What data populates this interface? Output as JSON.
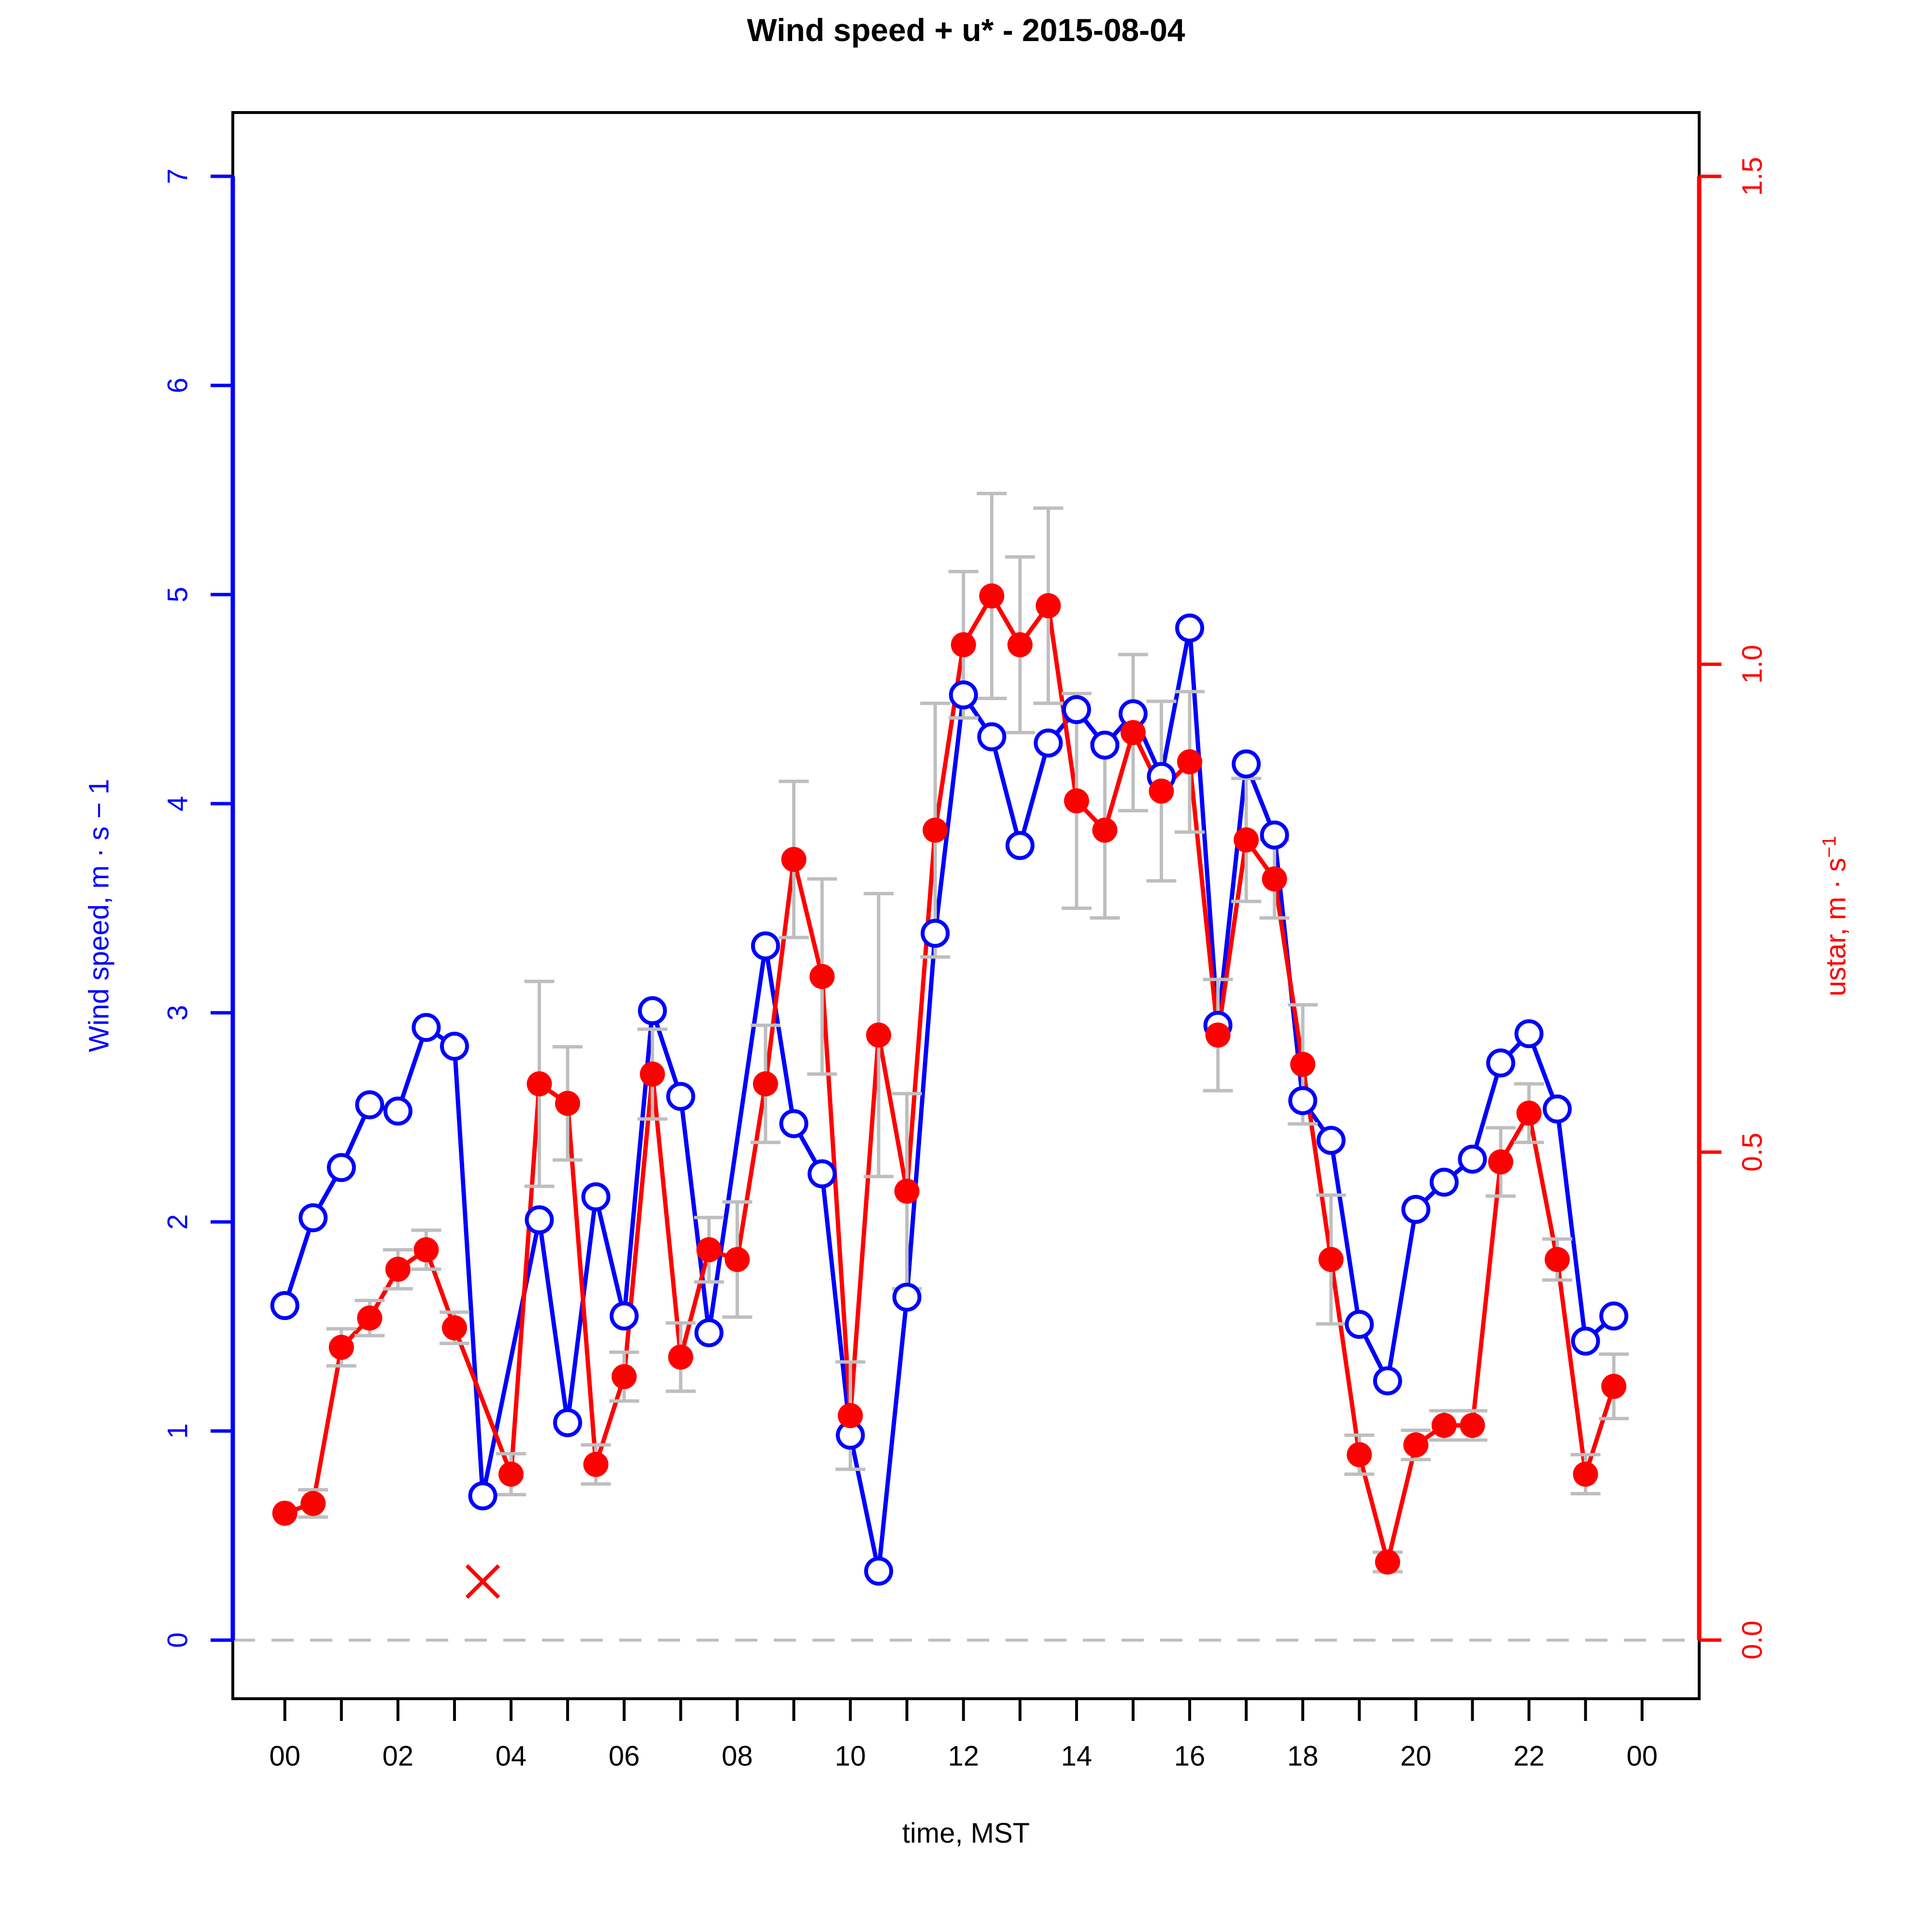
{
  "chart_data": {
    "type": "line",
    "title": "Wind speed + u* -  2015-08-04",
    "xlabel": "time, MST",
    "ylabel_left": "Wind speed, m · s − 1",
    "ylabel_right_base": "ustar, m · s",
    "ylabel_right_sup": "−1",
    "x_unit": "hour of day (half-hourly samples)",
    "x": [
      0,
      0.5,
      1,
      1.5,
      2,
      2.5,
      3,
      3.5,
      4,
      4.5,
      5,
      5.5,
      6,
      6.5,
      7,
      7.5,
      8,
      8.5,
      9,
      9.5,
      10,
      10.5,
      11,
      11.5,
      12,
      12.5,
      13,
      13.5,
      14,
      14.5,
      15,
      15.5,
      16,
      16.5,
      17,
      17.5,
      18,
      18.5,
      19,
      19.5,
      20,
      20.5,
      21,
      21.5,
      22,
      22.5,
      23,
      23.5
    ],
    "series": [
      {
        "name": "Wind speed",
        "axis": "left",
        "color": "#0000ff",
        "marker": "open-circle",
        "values": [
          1.6,
          2.02,
          2.26,
          2.56,
          2.53,
          2.93,
          2.84,
          0.69,
          null,
          2.01,
          1.04,
          2.12,
          1.55,
          3.01,
          2.6,
          1.47,
          null,
          3.32,
          2.47,
          2.23,
          0.98,
          0.33,
          1.64,
          3.38,
          4.52,
          4.32,
          3.8,
          4.29,
          4.45,
          4.28,
          4.43,
          4.13,
          4.84,
          2.94,
          4.19,
          3.85,
          2.58,
          2.39,
          1.51,
          1.24,
          2.06,
          2.19,
          2.3,
          2.76,
          2.9,
          2.54,
          1.43,
          1.55
        ]
      },
      {
        "name": "ustar",
        "axis": "right",
        "color": "#ff0000",
        "marker": "filled-circle",
        "values": [
          0.13,
          0.14,
          0.3,
          0.33,
          0.38,
          0.4,
          0.32,
          null,
          0.17,
          0.57,
          0.55,
          0.18,
          0.27,
          0.58,
          0.29,
          0.4,
          0.39,
          0.57,
          0.8,
          0.68,
          0.23,
          0.62,
          0.46,
          0.83,
          1.02,
          1.07,
          1.02,
          1.06,
          0.86,
          0.83,
          0.93,
          0.87,
          0.9,
          0.62,
          0.82,
          0.78,
          0.59,
          0.39,
          0.19,
          0.08,
          0.2,
          0.22,
          0.22,
          0.49,
          0.54,
          0.39,
          0.17,
          0.26
        ],
        "err": [
          null,
          0.014,
          0.019,
          0.018,
          0.02,
          0.02,
          0.016,
          null,
          0.021,
          0.105,
          0.058,
          0.02,
          0.025,
          0.046,
          0.035,
          0.033,
          0.059,
          0.06,
          0.08,
          0.1,
          0.055,
          0.145,
          0.1,
          0.13,
          0.075,
          0.105,
          0.09,
          0.1,
          0.11,
          0.09,
          0.08,
          0.092,
          0.072,
          0.057,
          0.063,
          0.04,
          0.061,
          0.066,
          0.02,
          0.01,
          0.015,
          0.015,
          0.015,
          0.035,
          0.03,
          0.021,
          0.02,
          0.033
        ]
      }
    ],
    "flagged_point": {
      "x": 3.5,
      "value": 0.06,
      "marker": "x",
      "color": "#ff0000",
      "series": "ustar"
    },
    "axes": {
      "x": {
        "range": [
          -0.92,
          25.01
        ],
        "tick_step_hours": 1,
        "label_positions": [
          0,
          2,
          4,
          6,
          8,
          10,
          12,
          14,
          16,
          18,
          20,
          22,
          24
        ],
        "labels": [
          "00",
          "02",
          "04",
          "06",
          "08",
          "10",
          "12",
          "14",
          "16",
          "18",
          "20",
          "22",
          "00"
        ],
        "color": "#000000"
      },
      "left": {
        "range": [
          -0.28,
          7.305
        ],
        "ticks": [
          0,
          1,
          2,
          3,
          4,
          5,
          6,
          7
        ],
        "labels": [
          "0",
          "1",
          "2",
          "3",
          "4",
          "5",
          "6",
          "7"
        ],
        "color": "#0000ff"
      },
      "right": {
        "range": [
          -0.0601,
          1.5654
        ],
        "ticks": [
          0,
          0.5,
          1.0,
          1.5
        ],
        "labels": [
          "0.0",
          "0.5",
          "1.0",
          "1.5"
        ],
        "color": "#ff0000"
      }
    },
    "zero_line": {
      "y": 0,
      "style": "dashed",
      "color": "#bebebe"
    },
    "error_bar_color": "#bebebe",
    "legend": "none",
    "grid": "off"
  }
}
